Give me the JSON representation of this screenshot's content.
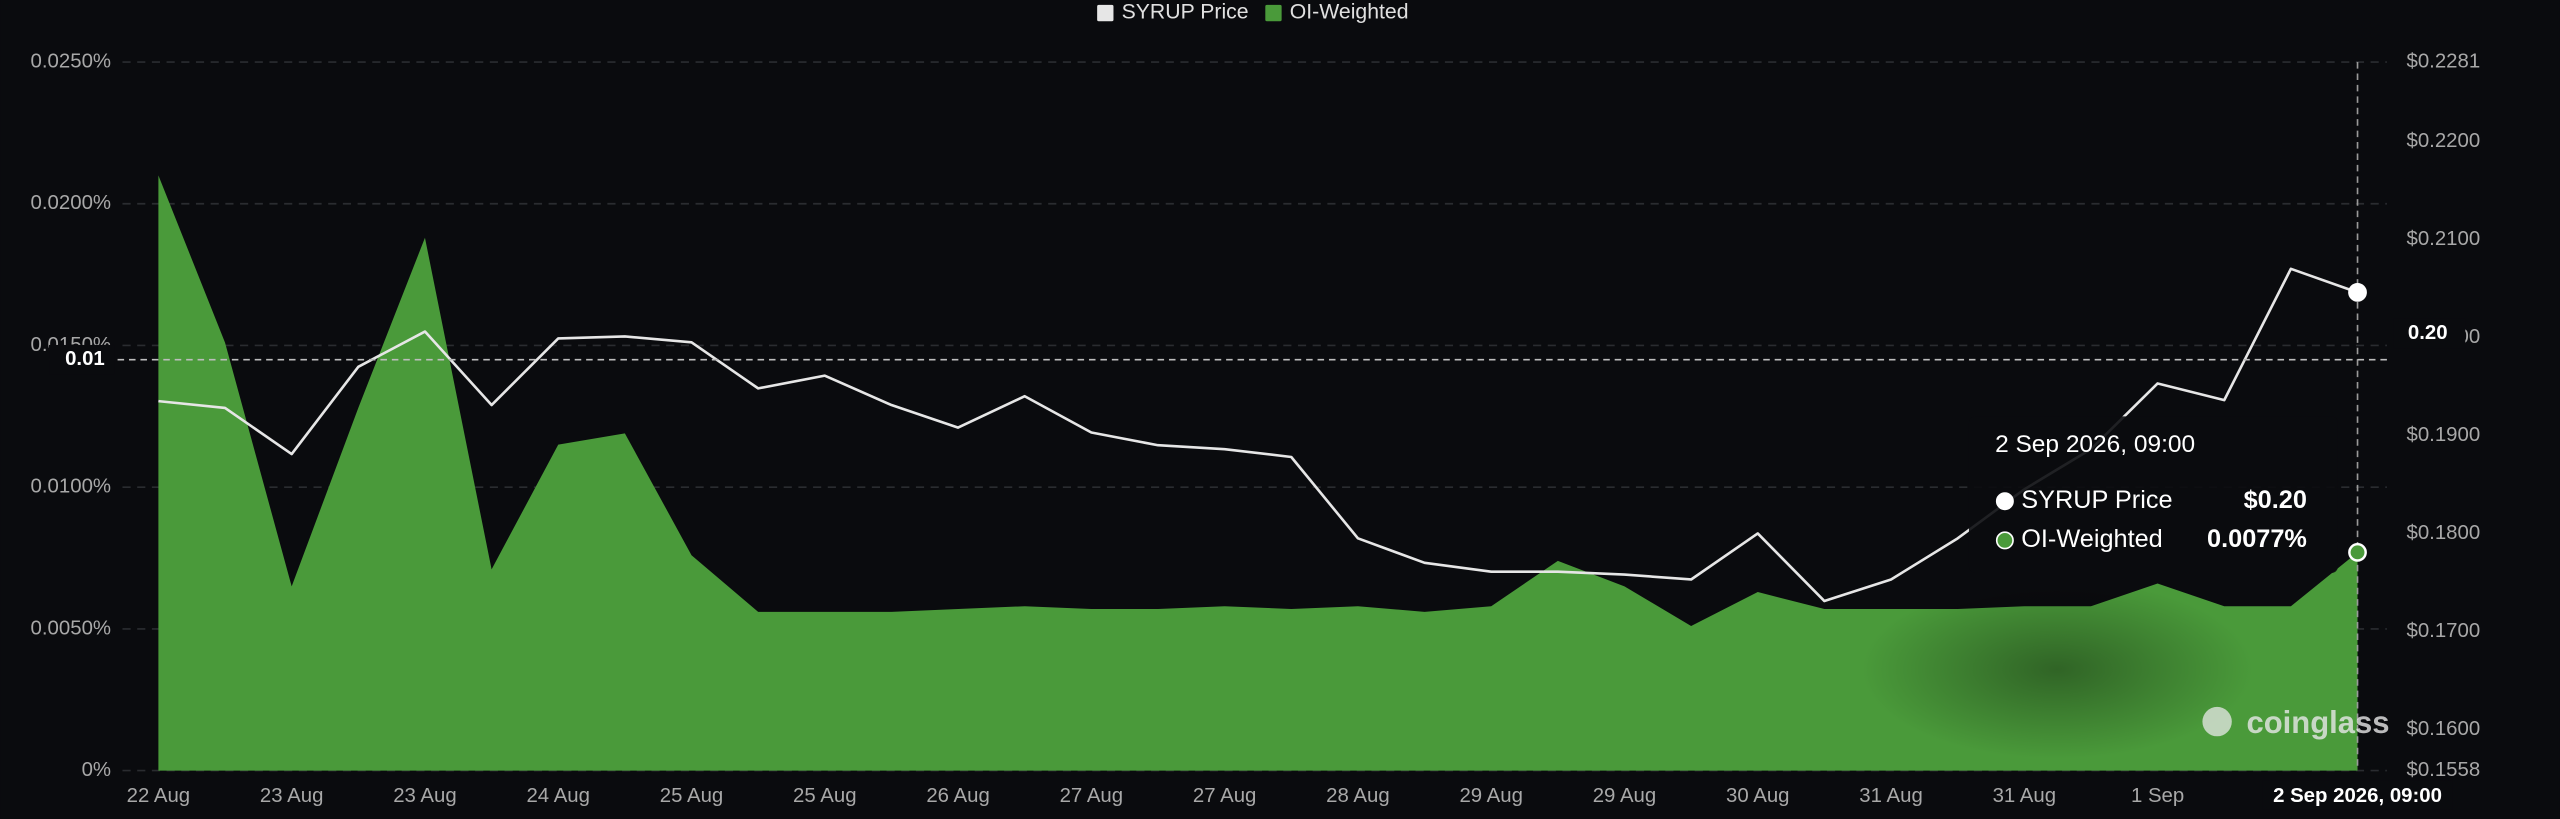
{
  "chart_data": {
    "type": "line",
    "legend": "top",
    "categories": [
      "22 Aug",
      null,
      "23 Aug",
      null,
      "23 Aug",
      null,
      "24 Aug",
      null,
      "25 Aug",
      null,
      "25 Aug",
      null,
      "26 Aug",
      null,
      "27 Aug",
      null,
      "27 Aug",
      null,
      "28 Aug",
      null,
      "29 Aug",
      null,
      "29 Aug",
      null,
      "30 Aug",
      null,
      "31 Aug",
      null,
      "31 Aug",
      null,
      "1 Sep",
      null,
      null,
      "2 Sep 2026, 09:00"
    ],
    "series": [
      {
        "name": "SYRUP Price",
        "color": "#e6e6e6",
        "type": "line",
        "axis": "y2",
        "values": [
          0.1935,
          0.1928,
          0.1881,
          0.197,
          0.2006,
          0.1931,
          0.1999,
          0.2001,
          0.1995,
          0.1948,
          0.1961,
          0.1931,
          0.1908,
          0.194,
          0.1903,
          0.189,
          0.1886,
          0.1878,
          0.1795,
          0.177,
          0.1761,
          0.1761,
          0.1758,
          0.1753,
          0.18,
          0.1731,
          0.1753,
          0.1795,
          0.1845,
          0.1886,
          0.1953,
          0.1936,
          0.207,
          0.2046
        ],
        "value_labels": [
          null,
          null,
          null,
          null,
          null,
          null,
          null,
          null,
          null,
          null,
          null,
          null,
          null,
          null,
          null,
          null,
          null,
          null,
          null,
          null,
          null,
          null,
          null,
          null,
          null,
          null,
          null,
          null,
          null,
          null,
          null,
          null,
          null,
          "$0.20"
        ]
      },
      {
        "name": "OI-Weighted",
        "color": "#4a9a3a",
        "type": "area",
        "axis": "y",
        "values": [
          0.021,
          0.0151,
          0.0065,
          0.0128,
          0.0188,
          0.0071,
          0.0115,
          0.0119,
          0.0076,
          0.0056,
          0.0056,
          0.0056,
          0.0057,
          0.0058,
          0.0057,
          0.0057,
          0.0058,
          0.0057,
          0.0058,
          0.0056,
          0.0058,
          0.0074,
          0.0065,
          0.0051,
          0.0063,
          0.0057,
          0.0057,
          0.0057,
          0.0058,
          0.0058,
          0.0066,
          0.0058,
          0.0058,
          0.0077
        ],
        "value_labels": [
          null,
          null,
          null,
          null,
          null,
          null,
          null,
          null,
          null,
          null,
          null,
          null,
          null,
          null,
          null,
          null,
          null,
          null,
          null,
          null,
          null,
          null,
          null,
          null,
          null,
          null,
          null,
          null,
          null,
          null,
          null,
          null,
          null,
          "0.0077%"
        ]
      }
    ],
    "ylim": [
      0,
      0.025
    ],
    "yticks": [
      {
        "value": 0,
        "label": "0%"
      },
      {
        "value": 0.005,
        "label": "0.0050%"
      },
      {
        "value": 0.01,
        "label": "0.0100%"
      },
      {
        "value": 0.015,
        "label": "0.0150%"
      },
      {
        "value": 0.02,
        "label": "0.0200%"
      },
      {
        "value": 0.025,
        "label": "0.0250%"
      }
    ],
    "y2lim": [
      0.1558,
      0.2281
    ],
    "y2ticks": [
      {
        "value": 0.1558,
        "label": "$0.1558"
      },
      {
        "value": 0.16,
        "label": "$0.1600"
      },
      {
        "value": 0.17,
        "label": "$0.1700"
      },
      {
        "value": 0.18,
        "label": "$0.1800"
      },
      {
        "value": 0.19,
        "label": "$0.1900"
      },
      {
        "value": 0.2,
        "label": "$0.2000"
      },
      {
        "value": 0.21,
        "label": "$0.2100"
      },
      {
        "value": 0.22,
        "label": "$0.2200"
      },
      {
        "value": 0.2281,
        "label": "$0.2281"
      }
    ],
    "grid": true,
    "crosshair": {
      "index": 33,
      "y_value": 0.0145,
      "y_label": "0.01",
      "y2_value": 0.2004,
      "y2_label": "0.20"
    },
    "watermark": "coinglass"
  }
}
